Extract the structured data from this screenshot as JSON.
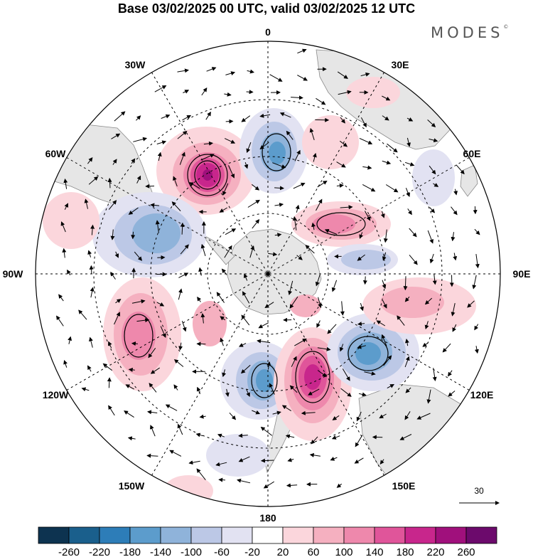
{
  "title": "Base 03/02/2025 00 UTC, valid 03/02/2025 12 UTC",
  "brand": "MODES",
  "brand_mark": "©",
  "longitude_labels": {
    "top": "0",
    "top_right": "30E",
    "right_upper": "60E",
    "right": "90E",
    "right_lower": "120E",
    "bottom_right": "150E",
    "bottom": "180",
    "bottom_left": "150W",
    "left_lower": "120W",
    "left": "90W",
    "left_upper": "60W",
    "top_left": "30W"
  },
  "reference_vector": {
    "label": "30"
  },
  "colorbar": {
    "ticks": [
      "-260",
      "-220",
      "-180",
      "-140",
      "-100",
      "-60",
      "-20",
      "20",
      "60",
      "100",
      "140",
      "180",
      "220",
      "260"
    ],
    "colors": [
      "#0d3350",
      "#1a5f8c",
      "#2d7db8",
      "#5c9ccc",
      "#8fb3da",
      "#bcc8e6",
      "#e2e2f2",
      "#ffffff",
      "#fbd6dc",
      "#f5b0c0",
      "#ee88ac",
      "#e0559a",
      "#c8268c",
      "#a0107c",
      "#6c0a6c"
    ]
  },
  "colors": {
    "land": "#e6e6e6",
    "coast": "#888888",
    "grid": "#000000",
    "vector": "#000000"
  }
}
